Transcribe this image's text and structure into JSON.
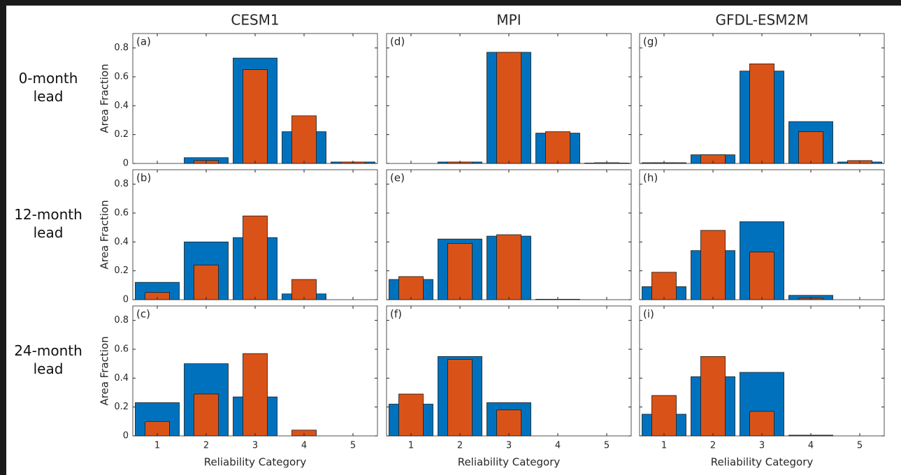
{
  "column_titles": [
    "CESM1",
    "MPI",
    "GFDL-ESM2M"
  ],
  "row_labels": [
    "0-month lead",
    "12-month lead",
    "24-month lead"
  ],
  "chart_data": [
    {
      "type": "bar",
      "label": "(a)",
      "ylabel": "Area Fraction",
      "x": [
        1,
        2,
        3,
        4,
        5
      ],
      "xlim": [
        0.5,
        5.5
      ],
      "xticks": [
        1,
        2,
        3,
        4,
        5
      ],
      "ylim": [
        0,
        0.9
      ],
      "yticks": [
        0,
        0.2,
        0.4,
        0.6,
        0.8
      ],
      "series": [
        {
          "color": "#0072bd",
          "values": [
            0,
            0.04,
            0.73,
            0.22,
            0.01
          ]
        },
        {
          "color": "#d95319",
          "values": [
            0,
            0.02,
            0.65,
            0.33,
            0.01
          ]
        }
      ]
    },
    {
      "type": "bar",
      "label": "(b)",
      "ylabel": "Area Fraction",
      "x": [
        1,
        2,
        3,
        4,
        5
      ],
      "xlim": [
        0.5,
        5.5
      ],
      "xticks": [
        1,
        2,
        3,
        4,
        5
      ],
      "ylim": [
        0,
        0.9
      ],
      "yticks": [
        0,
        0.2,
        0.4,
        0.6,
        0.8
      ],
      "series": [
        {
          "color": "#0072bd",
          "values": [
            0.12,
            0.4,
            0.43,
            0.04,
            0
          ]
        },
        {
          "color": "#d95319",
          "values": [
            0.05,
            0.24,
            0.58,
            0.14,
            0
          ]
        }
      ]
    },
    {
      "type": "bar",
      "label": "(c)",
      "ylabel": "Area Fraction",
      "xlabel": "Reliability Category",
      "x": [
        1,
        2,
        3,
        4,
        5
      ],
      "xlim": [
        0.5,
        5.5
      ],
      "xticks": [
        1,
        2,
        3,
        4,
        5
      ],
      "ylim": [
        0,
        0.9
      ],
      "yticks": [
        0,
        0.2,
        0.4,
        0.6,
        0.8
      ],
      "series": [
        {
          "color": "#0072bd",
          "values": [
            0.23,
            0.5,
            0.27,
            0,
            0
          ]
        },
        {
          "color": "#d95319",
          "values": [
            0.1,
            0.29,
            0.57,
            0.04,
            0
          ]
        }
      ]
    },
    {
      "type": "bar",
      "label": "(d)",
      "x": [
        1,
        2,
        3,
        4,
        5
      ],
      "xlim": [
        0.5,
        5.5
      ],
      "xticks": [
        1,
        2,
        3,
        4,
        5
      ],
      "ylim": [
        0,
        0.9
      ],
      "yticks": [
        0,
        0.2,
        0.4,
        0.6,
        0.8
      ],
      "series": [
        {
          "color": "#0072bd",
          "values": [
            0,
            0.01,
            0.77,
            0.21,
            0.003
          ]
        },
        {
          "color": "#d95319",
          "values": [
            0,
            0.01,
            0.77,
            0.22,
            0.005
          ]
        }
      ]
    },
    {
      "type": "bar",
      "label": "(e)",
      "x": [
        1,
        2,
        3,
        4,
        5
      ],
      "xlim": [
        0.5,
        5.5
      ],
      "xticks": [
        1,
        2,
        3,
        4,
        5
      ],
      "ylim": [
        0,
        0.9
      ],
      "yticks": [
        0,
        0.2,
        0.4,
        0.6,
        0.8
      ],
      "series": [
        {
          "color": "#0072bd",
          "values": [
            0.14,
            0.42,
            0.44,
            0.003,
            0
          ]
        },
        {
          "color": "#d95319",
          "values": [
            0.16,
            0.39,
            0.45,
            0,
            0
          ]
        }
      ]
    },
    {
      "type": "bar",
      "label": "(f)",
      "xlabel": "Reliability Category",
      "x": [
        1,
        2,
        3,
        4,
        5
      ],
      "xlim": [
        0.5,
        5.5
      ],
      "xticks": [
        1,
        2,
        3,
        4,
        5
      ],
      "ylim": [
        0,
        0.9
      ],
      "yticks": [
        0,
        0.2,
        0.4,
        0.6,
        0.8
      ],
      "series": [
        {
          "color": "#0072bd",
          "values": [
            0.22,
            0.55,
            0.23,
            0,
            0
          ]
        },
        {
          "color": "#d95319",
          "values": [
            0.29,
            0.53,
            0.18,
            0,
            0
          ]
        }
      ]
    },
    {
      "type": "bar",
      "label": "(g)",
      "x": [
        1,
        2,
        3,
        4,
        5
      ],
      "xlim": [
        0.5,
        5.5
      ],
      "xticks": [
        1,
        2,
        3,
        4,
        5
      ],
      "ylim": [
        0,
        0.9
      ],
      "yticks": [
        0,
        0.2,
        0.4,
        0.6,
        0.8
      ],
      "series": [
        {
          "color": "#0072bd",
          "values": [
            0.005,
            0.06,
            0.64,
            0.29,
            0.01
          ]
        },
        {
          "color": "#d95319",
          "values": [
            0.005,
            0.06,
            0.69,
            0.22,
            0.02
          ]
        }
      ]
    },
    {
      "type": "bar",
      "label": "(h)",
      "x": [
        1,
        2,
        3,
        4,
        5
      ],
      "xlim": [
        0.5,
        5.5
      ],
      "xticks": [
        1,
        2,
        3,
        4,
        5
      ],
      "ylim": [
        0,
        0.9
      ],
      "yticks": [
        0,
        0.2,
        0.4,
        0.6,
        0.8
      ],
      "series": [
        {
          "color": "#0072bd",
          "values": [
            0.09,
            0.34,
            0.54,
            0.03,
            0
          ]
        },
        {
          "color": "#d95319",
          "values": [
            0.19,
            0.48,
            0.33,
            0.01,
            0
          ]
        }
      ]
    },
    {
      "type": "bar",
      "label": "(i)",
      "xlabel": "Reliability Category",
      "x": [
        1,
        2,
        3,
        4,
        5
      ],
      "xlim": [
        0.5,
        5.5
      ],
      "xticks": [
        1,
        2,
        3,
        4,
        5
      ],
      "ylim": [
        0,
        0.9
      ],
      "yticks": [
        0,
        0.2,
        0.4,
        0.6,
        0.8
      ],
      "series": [
        {
          "color": "#0072bd",
          "values": [
            0.15,
            0.41,
            0.44,
            0.005,
            0
          ]
        },
        {
          "color": "#d95319",
          "values": [
            0.28,
            0.55,
            0.17,
            0,
            0
          ]
        }
      ]
    }
  ]
}
